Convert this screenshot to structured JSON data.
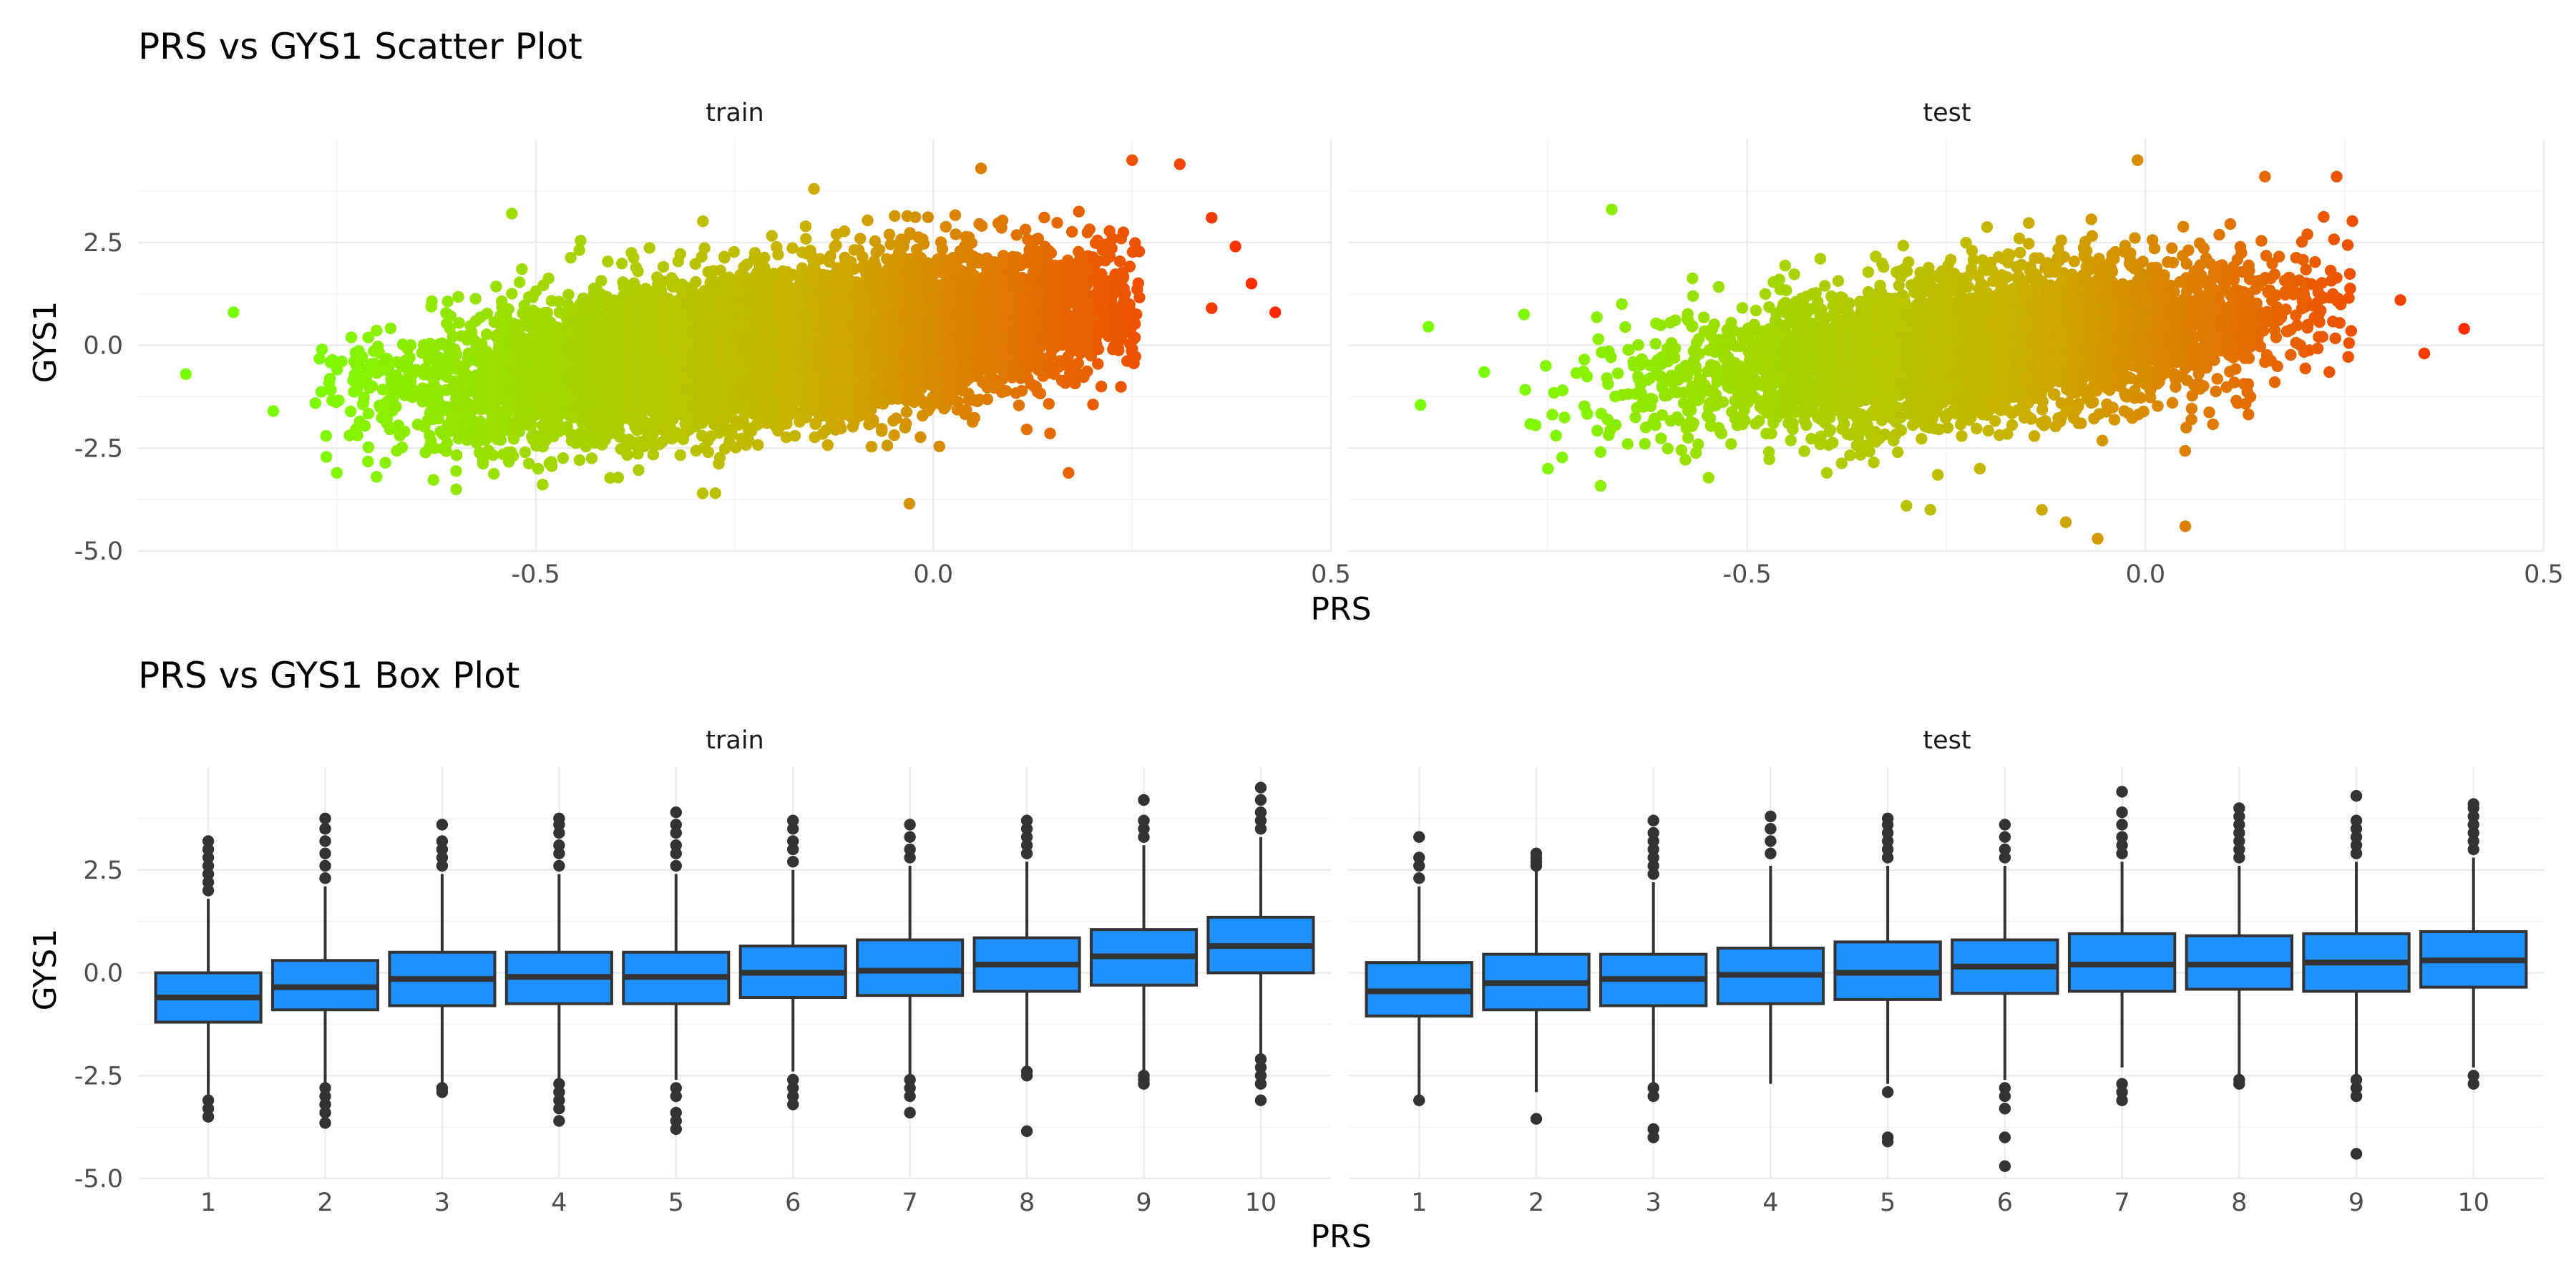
{
  "colors": {
    "low": "#7cfc00",
    "mid": "#c8b400",
    "high": "#ff2400",
    "box_fill": "#1e90ff",
    "box_line": "#333333"
  },
  "chart_data": [
    {
      "type": "scatter",
      "title": "PRS vs GYS1 Scatter Plot",
      "xlabel": "PRS",
      "ylabel": "GYS1",
      "xlim": [
        -1.0,
        0.5
      ],
      "ylim": [
        -5.0,
        5.0
      ],
      "x_ticks": [
        "-0.5",
        "0.0",
        "0.5"
      ],
      "y_ticks": [
        "-5.0",
        "-2.5",
        "0.0",
        "2.5"
      ],
      "color_by": "PRS",
      "grid": true,
      "panels": [
        {
          "label": "train",
          "x_center": -0.2,
          "x_sd": 0.21,
          "y_slope": 2.2,
          "y_sd": 0.85,
          "n": 9000,
          "outliers": [
            [
              -0.94,
              -0.7
            ],
            [
              -0.88,
              0.8
            ],
            [
              -0.83,
              -1.6
            ],
            [
              -0.75,
              -3.1
            ],
            [
              -0.6,
              -3.5
            ],
            [
              -0.53,
              3.2
            ],
            [
              -0.29,
              -3.6
            ],
            [
              -0.15,
              3.8
            ],
            [
              0.06,
              4.3
            ],
            [
              0.25,
              4.5
            ],
            [
              0.31,
              4.4
            ],
            [
              0.35,
              3.1
            ],
            [
              0.38,
              2.4
            ],
            [
              0.4,
              1.5
            ],
            [
              0.43,
              0.8
            ],
            [
              0.35,
              0.9
            ],
            [
              -0.03,
              -3.85
            ],
            [
              0.17,
              -3.1
            ]
          ]
        },
        {
          "label": "test",
          "x_center": -0.2,
          "x_sd": 0.19,
          "y_slope": 2.2,
          "y_sd": 0.85,
          "n": 4500,
          "outliers": [
            [
              -0.91,
              -1.45
            ],
            [
              -0.9,
              0.45
            ],
            [
              -0.83,
              -0.65
            ],
            [
              -0.78,
              0.75
            ],
            [
              -0.67,
              3.3
            ],
            [
              -0.75,
              -3.0
            ],
            [
              -0.65,
              -2.4
            ],
            [
              -0.4,
              -3.1
            ],
            [
              -0.3,
              -3.9
            ],
            [
              -0.27,
              -4.0
            ],
            [
              -0.13,
              -4.0
            ],
            [
              -0.1,
              -4.3
            ],
            [
              -0.06,
              -4.7
            ],
            [
              0.05,
              -4.4
            ],
            [
              -0.01,
              4.5
            ],
            [
              0.15,
              4.1
            ],
            [
              0.24,
              4.1
            ],
            [
              0.32,
              1.1
            ],
            [
              0.35,
              -0.2
            ],
            [
              0.4,
              0.4
            ]
          ]
        }
      ]
    },
    {
      "type": "box",
      "title": "PRS vs GYS1 Box Plot",
      "xlabel": "PRS",
      "ylabel": "GYS1",
      "ylim": [
        -5.0,
        5.0
      ],
      "categories": [
        "1",
        "2",
        "3",
        "4",
        "5",
        "6",
        "7",
        "8",
        "9",
        "10"
      ],
      "y_ticks": [
        "-5.0",
        "-2.5",
        "0.0",
        "2.5"
      ],
      "grid": true,
      "panels": [
        {
          "label": "train",
          "boxes": [
            {
              "lo": -3.0,
              "q1": -1.2,
              "med": -0.6,
              "q3": -0.0,
              "hi": 1.8,
              "out": [
                2.0,
                2.2,
                2.4,
                2.6,
                2.8,
                3.0,
                3.2,
                -3.1,
                -3.3,
                -3.5
              ]
            },
            {
              "lo": -2.7,
              "q1": -0.9,
              "med": -0.35,
              "q3": 0.3,
              "hi": 2.1,
              "out": [
                2.3,
                2.6,
                2.9,
                3.2,
                3.5,
                3.75,
                -2.8,
                -3.0,
                -3.2,
                -3.4,
                -3.65
              ]
            },
            {
              "lo": -2.7,
              "q1": -0.8,
              "med": -0.15,
              "q3": 0.5,
              "hi": 2.4,
              "out": [
                2.6,
                2.8,
                3.0,
                3.2,
                3.6,
                -2.8,
                -2.9
              ]
            },
            {
              "lo": -2.6,
              "q1": -0.75,
              "med": -0.1,
              "q3": 0.5,
              "hi": 2.4,
              "out": [
                2.6,
                2.9,
                3.1,
                3.4,
                3.6,
                3.75,
                -2.7,
                -2.9,
                -3.1,
                -3.3,
                -3.6
              ]
            },
            {
              "lo": -2.6,
              "q1": -0.75,
              "med": -0.1,
              "q3": 0.5,
              "hi": 2.4,
              "out": [
                2.6,
                2.9,
                3.1,
                3.4,
                3.6,
                3.9,
                -2.8,
                -3.0,
                -3.4,
                -3.6,
                -3.8
              ]
            },
            {
              "lo": -2.4,
              "q1": -0.6,
              "med": 0.0,
              "q3": 0.65,
              "hi": 2.5,
              "out": [
                2.7,
                3.0,
                3.2,
                3.5,
                3.7,
                -2.6,
                -2.8,
                -3.0,
                -3.2
              ]
            },
            {
              "lo": -2.5,
              "q1": -0.55,
              "med": 0.05,
              "q3": 0.8,
              "hi": 2.6,
              "out": [
                2.8,
                3.0,
                3.3,
                3.6,
                -2.6,
                -2.8,
                -3.0,
                -3.4
              ]
            },
            {
              "lo": -2.3,
              "q1": -0.45,
              "med": 0.2,
              "q3": 0.85,
              "hi": 2.7,
              "out": [
                2.9,
                3.1,
                3.3,
                3.5,
                3.7,
                -2.4,
                -2.5,
                -3.85
              ]
            },
            {
              "lo": -2.4,
              "q1": -0.3,
              "med": 0.4,
              "q3": 1.05,
              "hi": 3.1,
              "out": [
                3.3,
                3.5,
                3.7,
                4.2,
                -2.5,
                -2.6,
                -2.7
              ]
            },
            {
              "lo": -2.0,
              "q1": -0.0,
              "med": 0.65,
              "q3": 1.35,
              "hi": 3.3,
              "out": [
                3.5,
                3.7,
                3.9,
                4.2,
                4.5,
                -2.1,
                -2.3,
                -2.5,
                -2.7,
                -3.1
              ]
            }
          ]
        },
        {
          "label": "test",
          "boxes": [
            {
              "lo": -3.0,
              "q1": -1.05,
              "med": -0.45,
              "q3": 0.25,
              "hi": 2.1,
              "out": [
                2.3,
                2.6,
                2.8,
                3.3,
                -3.1
              ]
            },
            {
              "lo": -2.9,
              "q1": -0.9,
              "med": -0.25,
              "q3": 0.45,
              "hi": 2.5,
              "out": [
                2.6,
                2.7,
                2.8,
                2.9,
                -3.55
              ]
            },
            {
              "lo": -2.7,
              "q1": -0.8,
              "med": -0.15,
              "q3": 0.45,
              "hi": 2.2,
              "out": [
                2.4,
                2.6,
                2.8,
                3.0,
                3.2,
                3.4,
                3.7,
                -2.8,
                -3.0,
                -3.8,
                -4.0
              ]
            },
            {
              "lo": -2.7,
              "q1": -0.75,
              "med": -0.05,
              "q3": 0.6,
              "hi": 2.6,
              "out": [
                2.9,
                3.2,
                3.5,
                3.8
              ]
            },
            {
              "lo": -2.7,
              "q1": -0.65,
              "med": 0.0,
              "q3": 0.75,
              "hi": 2.6,
              "out": [
                2.8,
                3.0,
                3.2,
                3.4,
                3.6,
                3.75,
                -2.9,
                -4.0,
                -4.1
              ]
            },
            {
              "lo": -2.6,
              "q1": -0.5,
              "med": 0.15,
              "q3": 0.8,
              "hi": 2.6,
              "out": [
                2.8,
                3.0,
                3.3,
                3.6,
                -2.8,
                -3.0,
                -3.3,
                -4.0,
                -4.7
              ]
            },
            {
              "lo": -2.3,
              "q1": -0.45,
              "med": 0.2,
              "q3": 0.95,
              "hi": 2.7,
              "out": [
                2.9,
                3.1,
                3.3,
                3.6,
                3.9,
                4.4,
                -2.7,
                -2.9,
                -3.1
              ]
            },
            {
              "lo": -2.5,
              "q1": -0.4,
              "med": 0.2,
              "q3": 0.9,
              "hi": 2.6,
              "out": [
                2.8,
                3.0,
                3.2,
                3.4,
                3.6,
                3.8,
                4.0,
                -2.6,
                -2.7
              ]
            },
            {
              "lo": -2.5,
              "q1": -0.45,
              "med": 0.25,
              "q3": 0.95,
              "hi": 2.7,
              "out": [
                2.9,
                3.1,
                3.3,
                3.5,
                3.7,
                4.3,
                -2.6,
                -2.8,
                -3.0,
                -4.4
              ]
            },
            {
              "lo": -2.3,
              "q1": -0.35,
              "med": 0.3,
              "q3": 1.0,
              "hi": 2.8,
              "out": [
                3.0,
                3.2,
                3.4,
                3.6,
                3.8,
                4.0,
                4.1,
                -2.5,
                -2.7
              ]
            }
          ]
        }
      ]
    }
  ]
}
